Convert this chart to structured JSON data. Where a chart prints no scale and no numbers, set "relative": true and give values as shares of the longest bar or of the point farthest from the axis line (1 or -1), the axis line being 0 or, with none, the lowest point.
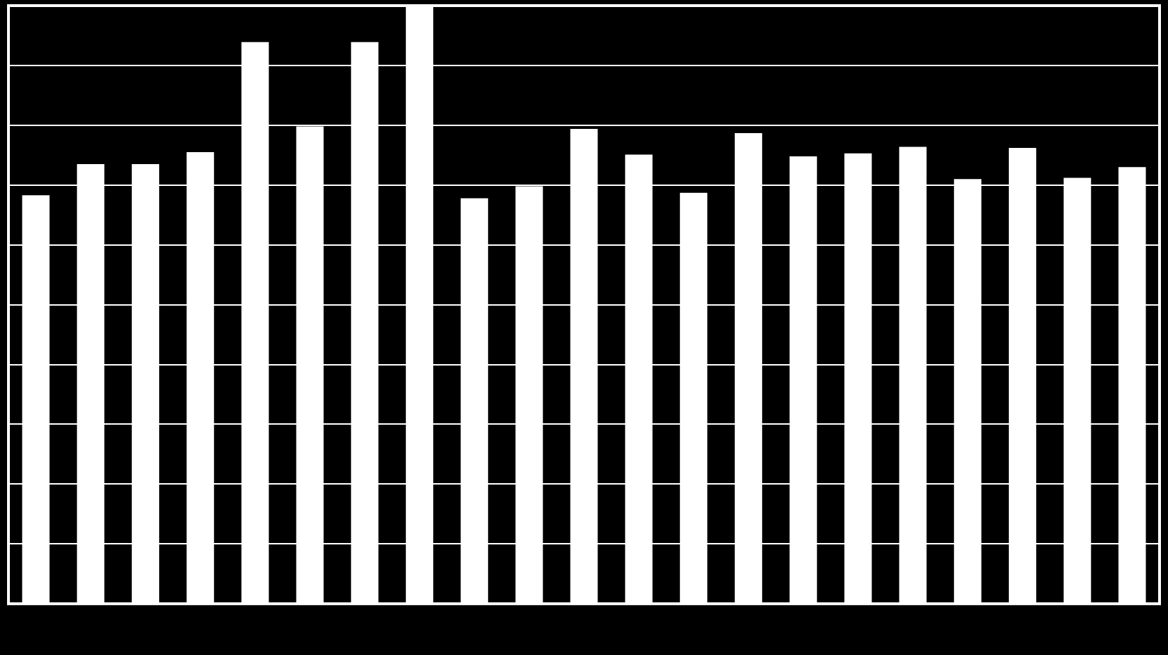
{
  "chart_data": {
    "type": "bar",
    "relative": true,
    "grid": "y",
    "legend": false,
    "categories": [
      null,
      null,
      null,
      null,
      null,
      null,
      null,
      null,
      null,
      null,
      null,
      null,
      null,
      null,
      null,
      null,
      null,
      null,
      null,
      null,
      null
    ],
    "color": "#ffffff",
    "values": [
      0.683,
      0.735,
      0.735,
      0.755,
      0.939,
      0.798,
      0.939,
      1,
      0.678,
      0.698,
      0.794,
      0.751,
      0.687,
      0.787,
      0.748,
      0.753,
      0.764,
      0.71,
      0.762,
      0.712,
      0.73
    ]
  }
}
